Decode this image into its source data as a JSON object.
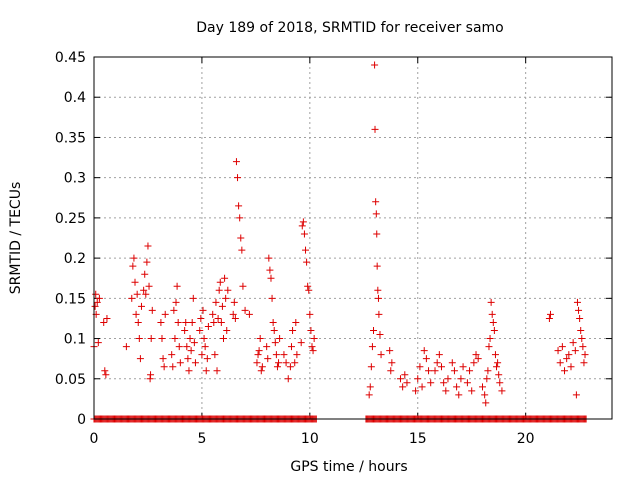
{
  "chart_data": {
    "type": "scatter",
    "title": "Day 189 of 2018, SRMTID for receiver samo",
    "xlabel": "GPS time / hours",
    "ylabel": "SRMTID / TECUs",
    "xlim": [
      0,
      24
    ],
    "ylim": [
      0,
      0.45
    ],
    "x_ticks": [
      0,
      5,
      10,
      15,
      20
    ],
    "y_ticks": [
      0,
      0.05,
      0.1,
      0.15,
      0.2,
      0.25,
      0.3,
      0.35,
      0.4,
      0.45
    ],
    "x_tick_labels": [
      "0",
      "5",
      "10",
      "15",
      "20"
    ],
    "y_tick_labels": [
      "0",
      "0.05",
      "0.1",
      "0.15",
      "0.2",
      "0.25",
      "0.3",
      "0.35",
      "0.4",
      "0.45"
    ],
    "grid": true,
    "marker": "+",
    "color": "#dd0000",
    "series": [
      {
        "name": "SRMTID",
        "zero_baseline_ranges": [
          [
            0.0,
            10.3
          ],
          [
            12.6,
            22.8
          ]
        ],
        "points": [
          [
            0.0,
            0.09
          ],
          [
            0.05,
            0.14
          ],
          [
            0.08,
            0.155
          ],
          [
            0.1,
            0.13
          ],
          [
            0.15,
            0.145
          ],
          [
            0.2,
            0.095
          ],
          [
            0.25,
            0.15
          ],
          [
            0.45,
            0.12
          ],
          [
            0.5,
            0.06
          ],
          [
            0.55,
            0.055
          ],
          [
            0.6,
            0.125
          ],
          [
            1.5,
            0.09
          ],
          [
            1.75,
            0.15
          ],
          [
            1.8,
            0.19
          ],
          [
            1.85,
            0.2
          ],
          [
            1.9,
            0.17
          ],
          [
            1.95,
            0.13
          ],
          [
            2.0,
            0.155
          ],
          [
            2.05,
            0.12
          ],
          [
            2.1,
            0.1
          ],
          [
            2.15,
            0.075
          ],
          [
            2.2,
            0.14
          ],
          [
            2.3,
            0.16
          ],
          [
            2.35,
            0.18
          ],
          [
            2.4,
            0.155
          ],
          [
            2.45,
            0.195
          ],
          [
            2.5,
            0.215
          ],
          [
            2.55,
            0.165
          ],
          [
            2.6,
            0.05
          ],
          [
            2.62,
            0.055
          ],
          [
            2.65,
            0.1
          ],
          [
            2.7,
            0.135
          ],
          [
            3.1,
            0.12
          ],
          [
            3.15,
            0.1
          ],
          [
            3.2,
            0.075
          ],
          [
            3.25,
            0.065
          ],
          [
            3.3,
            0.13
          ],
          [
            3.6,
            0.08
          ],
          [
            3.65,
            0.065
          ],
          [
            3.7,
            0.135
          ],
          [
            3.75,
            0.1
          ],
          [
            3.8,
            0.145
          ],
          [
            3.85,
            0.165
          ],
          [
            3.9,
            0.12
          ],
          [
            3.95,
            0.09
          ],
          [
            4.0,
            0.07
          ],
          [
            4.2,
            0.11
          ],
          [
            4.25,
            0.12
          ],
          [
            4.3,
            0.09
          ],
          [
            4.35,
            0.075
          ],
          [
            4.4,
            0.06
          ],
          [
            4.45,
            0.1
          ],
          [
            4.5,
            0.085
          ],
          [
            4.55,
            0.12
          ],
          [
            4.6,
            0.15
          ],
          [
            4.65,
            0.095
          ],
          [
            4.7,
            0.07
          ],
          [
            4.9,
            0.11
          ],
          [
            4.95,
            0.125
          ],
          [
            5.0,
            0.08
          ],
          [
            5.05,
            0.135
          ],
          [
            5.1,
            0.1
          ],
          [
            5.15,
            0.09
          ],
          [
            5.2,
            0.06
          ],
          [
            5.25,
            0.075
          ],
          [
            5.3,
            0.115
          ],
          [
            5.5,
            0.13
          ],
          [
            5.55,
            0.12
          ],
          [
            5.6,
            0.08
          ],
          [
            5.65,
            0.145
          ],
          [
            5.7,
            0.06
          ],
          [
            5.75,
            0.125
          ],
          [
            5.8,
            0.16
          ],
          [
            5.85,
            0.17
          ],
          [
            5.9,
            0.12
          ],
          [
            5.95,
            0.14
          ],
          [
            6.0,
            0.1
          ],
          [
            6.05,
            0.175
          ],
          [
            6.1,
            0.15
          ],
          [
            6.15,
            0.11
          ],
          [
            6.2,
            0.16
          ],
          [
            6.45,
            0.13
          ],
          [
            6.5,
            0.145
          ],
          [
            6.55,
            0.125
          ],
          [
            6.6,
            0.32
          ],
          [
            6.65,
            0.3
          ],
          [
            6.7,
            0.265
          ],
          [
            6.75,
            0.25
          ],
          [
            6.8,
            0.225
          ],
          [
            6.85,
            0.21
          ],
          [
            6.9,
            0.165
          ],
          [
            7.0,
            0.135
          ],
          [
            7.2,
            0.13
          ],
          [
            7.55,
            0.07
          ],
          [
            7.6,
            0.08
          ],
          [
            7.65,
            0.085
          ],
          [
            7.7,
            0.1
          ],
          [
            7.75,
            0.06
          ],
          [
            7.8,
            0.065
          ],
          [
            8.0,
            0.09
          ],
          [
            8.05,
            0.075
          ],
          [
            8.1,
            0.2
          ],
          [
            8.15,
            0.185
          ],
          [
            8.2,
            0.175
          ],
          [
            8.25,
            0.15
          ],
          [
            8.3,
            0.12
          ],
          [
            8.35,
            0.11
          ],
          [
            8.4,
            0.095
          ],
          [
            8.45,
            0.08
          ],
          [
            8.5,
            0.065
          ],
          [
            8.55,
            0.07
          ],
          [
            8.6,
            0.1
          ],
          [
            8.8,
            0.08
          ],
          [
            8.9,
            0.07
          ],
          [
            9.0,
            0.05
          ],
          [
            9.1,
            0.065
          ],
          [
            9.15,
            0.09
          ],
          [
            9.2,
            0.11
          ],
          [
            9.3,
            0.07
          ],
          [
            9.35,
            0.12
          ],
          [
            9.4,
            0.08
          ],
          [
            9.6,
            0.095
          ],
          [
            9.65,
            0.24
          ],
          [
            9.7,
            0.245
          ],
          [
            9.75,
            0.23
          ],
          [
            9.8,
            0.21
          ],
          [
            9.85,
            0.195
          ],
          [
            9.9,
            0.165
          ],
          [
            9.95,
            0.16
          ],
          [
            10.0,
            0.13
          ],
          [
            10.05,
            0.11
          ],
          [
            10.1,
            0.09
          ],
          [
            10.15,
            0.085
          ],
          [
            10.2,
            0.1
          ],
          [
            12.75,
            0.03
          ],
          [
            12.8,
            0.04
          ],
          [
            12.85,
            0.065
          ],
          [
            12.9,
            0.09
          ],
          [
            12.95,
            0.11
          ],
          [
            13.0,
            0.44
          ],
          [
            13.02,
            0.36
          ],
          [
            13.05,
            0.27
          ],
          [
            13.08,
            0.255
          ],
          [
            13.1,
            0.23
          ],
          [
            13.12,
            0.19
          ],
          [
            13.15,
            0.16
          ],
          [
            13.18,
            0.15
          ],
          [
            13.2,
            0.13
          ],
          [
            13.25,
            0.105
          ],
          [
            13.3,
            0.08
          ],
          [
            13.7,
            0.085
          ],
          [
            13.75,
            0.06
          ],
          [
            13.8,
            0.07
          ],
          [
            14.2,
            0.05
          ],
          [
            14.3,
            0.04
          ],
          [
            14.4,
            0.055
          ],
          [
            14.5,
            0.045
          ],
          [
            14.9,
            0.035
          ],
          [
            15.0,
            0.05
          ],
          [
            15.1,
            0.065
          ],
          [
            15.2,
            0.04
          ],
          [
            15.3,
            0.085
          ],
          [
            15.4,
            0.075
          ],
          [
            15.5,
            0.06
          ],
          [
            15.6,
            0.045
          ],
          [
            15.8,
            0.06
          ],
          [
            15.9,
            0.07
          ],
          [
            16.0,
            0.08
          ],
          [
            16.1,
            0.065
          ],
          [
            16.2,
            0.045
          ],
          [
            16.3,
            0.035
          ],
          [
            16.4,
            0.05
          ],
          [
            16.6,
            0.07
          ],
          [
            16.7,
            0.06
          ],
          [
            16.8,
            0.04
          ],
          [
            16.9,
            0.03
          ],
          [
            17.0,
            0.05
          ],
          [
            17.1,
            0.065
          ],
          [
            17.3,
            0.045
          ],
          [
            17.4,
            0.06
          ],
          [
            17.5,
            0.035
          ],
          [
            17.6,
            0.07
          ],
          [
            17.7,
            0.08
          ],
          [
            17.8,
            0.075
          ],
          [
            18.0,
            0.04
          ],
          [
            18.1,
            0.03
          ],
          [
            18.15,
            0.02
          ],
          [
            18.2,
            0.05
          ],
          [
            18.25,
            0.06
          ],
          [
            18.3,
            0.09
          ],
          [
            18.35,
            0.1
          ],
          [
            18.4,
            0.145
          ],
          [
            18.45,
            0.13
          ],
          [
            18.5,
            0.12
          ],
          [
            18.55,
            0.11
          ],
          [
            18.6,
            0.08
          ],
          [
            18.65,
            0.065
          ],
          [
            18.7,
            0.07
          ],
          [
            18.75,
            0.055
          ],
          [
            18.8,
            0.045
          ],
          [
            18.9,
            0.035
          ],
          [
            21.1,
            0.125
          ],
          [
            21.15,
            0.13
          ],
          [
            21.5,
            0.085
          ],
          [
            21.6,
            0.07
          ],
          [
            21.7,
            0.09
          ],
          [
            21.8,
            0.06
          ],
          [
            21.9,
            0.075
          ],
          [
            22.0,
            0.08
          ],
          [
            22.1,
            0.065
          ],
          [
            22.2,
            0.095
          ],
          [
            22.3,
            0.085
          ],
          [
            22.35,
            0.03
          ],
          [
            22.4,
            0.145
          ],
          [
            22.45,
            0.135
          ],
          [
            22.5,
            0.125
          ],
          [
            22.55,
            0.11
          ],
          [
            22.6,
            0.1
          ],
          [
            22.65,
            0.09
          ],
          [
            22.7,
            0.07
          ],
          [
            22.75,
            0.08
          ]
        ]
      }
    ]
  }
}
